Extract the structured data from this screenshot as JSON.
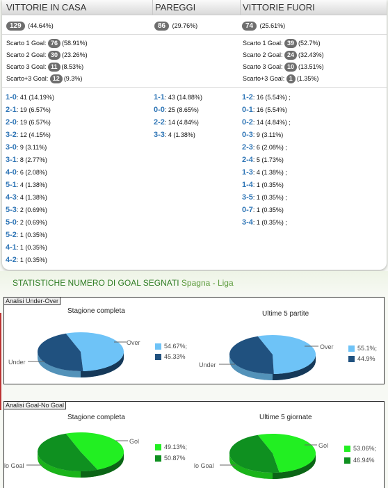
{
  "header": {
    "home": "VITTORIE IN CASA",
    "draw": "PAREGGI",
    "away": "VITTORIE FUORI"
  },
  "totals": {
    "home": {
      "count": "129",
      "pct": "(44.64%)"
    },
    "draw": {
      "count": "86",
      "pct": "(29.76%)"
    },
    "away": {
      "count": "74",
      "pct": "(25.61%)"
    }
  },
  "margins": {
    "home": [
      {
        "label": "Scarto 1 Goal:",
        "count": "76",
        "pct": "(58.91%)"
      },
      {
        "label": "Scarto 2 Goal:",
        "count": "30",
        "pct": "(23.26%)"
      },
      {
        "label": "Scarto 3 Goal:",
        "count": "11",
        "pct": "(8.53%)"
      },
      {
        "label": "Scarto+3 Goal:",
        "count": "12",
        "pct": "(9.3%)"
      }
    ],
    "away": [
      {
        "label": "Scarto 1 Goal:",
        "count": "39",
        "pct": "(52.7%)"
      },
      {
        "label": "Scarto 2 Goal:",
        "count": "24",
        "pct": "(32.43%)"
      },
      {
        "label": "Scarto 3 Goal:",
        "count": "10",
        "pct": "(13.51%)"
      },
      {
        "label": "Scarto+3 Goal:",
        "count": "1",
        "pct": "(1.35%)"
      }
    ]
  },
  "scores": {
    "home": [
      {
        "score": "1-0",
        "text": ": 41 (14.19%)"
      },
      {
        "score": "2-1",
        "text": ": 19 (6.57%)"
      },
      {
        "score": "2-0",
        "text": ": 19 (6.57%)"
      },
      {
        "score": "3-2",
        "text": ": 12 (4.15%)"
      },
      {
        "score": "3-0",
        "text": ": 9 (3.11%)"
      },
      {
        "score": "3-1",
        "text": ": 8 (2.77%)"
      },
      {
        "score": "4-0",
        "text": ": 6 (2.08%)"
      },
      {
        "score": "5-1",
        "text": ": 4 (1.38%)"
      },
      {
        "score": "4-3",
        "text": ": 4 (1.38%)"
      },
      {
        "score": "5-3",
        "text": ": 2 (0.69%)"
      },
      {
        "score": "5-0",
        "text": ": 2 (0.69%)"
      },
      {
        "score": "5-2",
        "text": ": 1 (0.35%)"
      },
      {
        "score": "4-1",
        "text": ": 1 (0.35%)"
      },
      {
        "score": "4-2",
        "text": ": 1 (0.35%)"
      }
    ],
    "draw": [
      {
        "score": "1-1",
        "text": ": 43 (14.88%)"
      },
      {
        "score": "0-0",
        "text": ": 25 (8.65%)"
      },
      {
        "score": "2-2",
        "text": ": 14 (4.84%)"
      },
      {
        "score": "3-3",
        "text": ": 4 (1.38%)"
      }
    ],
    "away": [
      {
        "score": "1-2",
        "text": ": 16 (5.54%) ;"
      },
      {
        "score": "0-1",
        "text": ": 16 (5.54%)"
      },
      {
        "score": "0-2",
        "text": ": 14 (4.84%) ;"
      },
      {
        "score": "0-3",
        "text": ": 9 (3.11%)"
      },
      {
        "score": "2-3",
        "text": ": 6 (2.08%) ;"
      },
      {
        "score": "2-4",
        "text": ": 5 (1.73%)"
      },
      {
        "score": "1-3",
        "text": ": 4 (1.38%) ;"
      },
      {
        "score": "1-4",
        "text": ": 1 (0.35%)"
      },
      {
        "score": "3-5",
        "text": ": 1 (0.35%) ;"
      },
      {
        "score": "0-7",
        "text": ": 1 (0.35%)"
      },
      {
        "score": "3-4",
        "text": ": 1 (0.35%) ;"
      }
    ]
  },
  "section_title": {
    "main": "STATISTICHE NUMERO DI GOAL SEGNATI",
    "league": "Spagna - Liga"
  },
  "colors": {
    "light_blue": "#6ec3f7",
    "dark_blue": "#20517f",
    "light_green": "#22ef22",
    "dark_green": "#0f9020",
    "score_blue": "#2e75b6"
  },
  "panels": {
    "under_over": {
      "title": "Analisi Under-Over",
      "left_sub": "Stagione completa",
      "right_sub": "Ultime 5 partite",
      "label_over": "Over",
      "label_under": "Under"
    },
    "goal_nogoal": {
      "title": "Analisi Goal-No Goal",
      "left_sub": "Stagione completa",
      "right_sub": "Ultime 5 giornate",
      "label_gol": "Gol",
      "label_nogoal": "lo Goal"
    }
  },
  "chart_data": [
    {
      "type": "pie",
      "title": "Stagione completa",
      "categories": [
        "Over",
        "Under"
      ],
      "values": [
        54.67,
        45.33
      ],
      "legend_labels": [
        "54.67%;",
        "45.33%"
      ],
      "legend": "right"
    },
    {
      "type": "pie",
      "title": "Ultime 5 partite",
      "categories": [
        "Over",
        "Under"
      ],
      "values": [
        55.1,
        44.9
      ],
      "legend_labels": [
        "55.1%;",
        "44.9%"
      ],
      "legend": "right"
    },
    {
      "type": "pie",
      "title": "Stagione completa",
      "categories": [
        "Gol",
        "No Goal"
      ],
      "values": [
        49.13,
        50.87
      ],
      "legend_labels": [
        "49.13%;",
        "50.87%"
      ],
      "legend": "right"
    },
    {
      "type": "pie",
      "title": "Ultime 5 giornate",
      "categories": [
        "Gol",
        "No Goal"
      ],
      "values": [
        53.06,
        46.94
      ],
      "legend_labels": [
        "53.06%;",
        "46.94%"
      ],
      "legend": "right"
    }
  ]
}
